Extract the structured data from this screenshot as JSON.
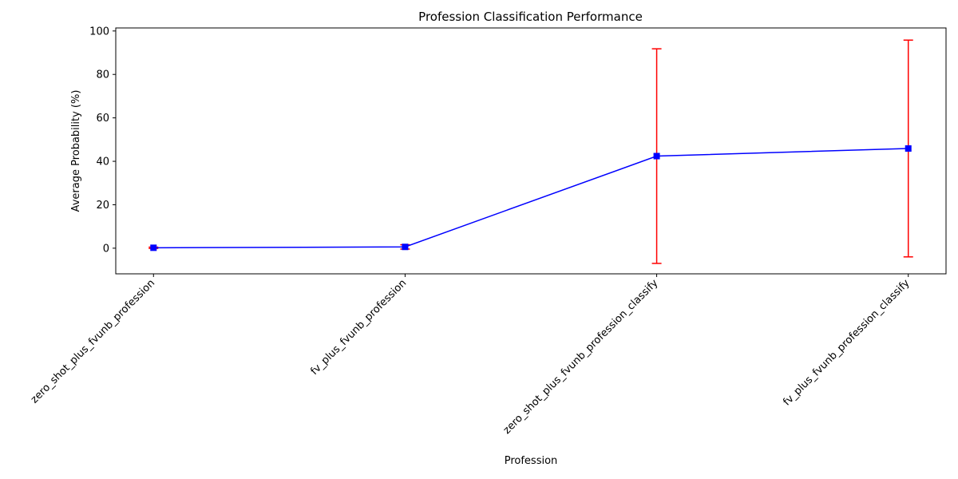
{
  "chart_data": {
    "type": "line",
    "title": "Profession Classification Performance",
    "xlabel": "Profession",
    "ylabel": "Average Probability (%)",
    "categories": [
      "zero_shot_plus_fvunb_profession",
      "fv_plus_fvunb_profession",
      "zero_shot_plus_fvunb_profession_classify",
      "fv_plus_fvunb_profession_classify"
    ],
    "series": [
      {
        "values": [
          0.2,
          0.6,
          42.4,
          45.9
        ],
        "error": [
          0.3,
          1.0,
          49.4,
          49.9
        ],
        "line_color": "#0000ff",
        "marker": "square",
        "error_color": "#ff0000"
      }
    ],
    "ylim": [
      -11.8,
      101.4
    ],
    "yticks": [
      0,
      20,
      40,
      60,
      80,
      100
    ],
    "grid": false,
    "legend": "none"
  }
}
